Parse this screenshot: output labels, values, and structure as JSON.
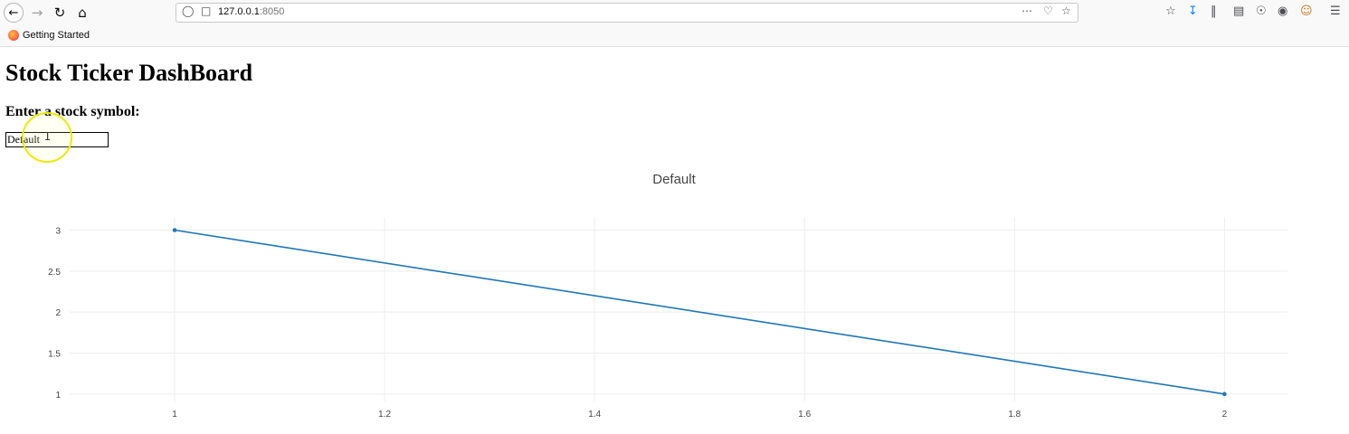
{
  "browser": {
    "url_host": "127.0.0.1",
    "url_port": ":8050",
    "bookmark": "Getting Started"
  },
  "page": {
    "title": "Stock Ticker DashBoard",
    "prompt": "Enter a stock symbol:",
    "input_value": "Default"
  },
  "colors": {
    "line": "#1f77b4",
    "grid": "#eeeeee"
  },
  "chart_data": {
    "type": "line",
    "title": "Default",
    "x": [
      1,
      2
    ],
    "series": [
      {
        "values": [
          3,
          1
        ]
      }
    ],
    "xlim": [
      0.9,
      2.06
    ],
    "ylim": [
      0.91,
      3.16
    ],
    "xticks": [
      1,
      1.2,
      1.4,
      1.6,
      1.8,
      2
    ],
    "xtick_labels": [
      "1",
      "1.2",
      "1.4",
      "1.6",
      "1.8",
      "2"
    ],
    "yticks": [
      1,
      1.5,
      2,
      2.5,
      3
    ],
    "ytick_labels": [
      "1",
      "1.5",
      "2",
      "2.5",
      "3"
    ],
    "xlabel": "",
    "ylabel": "",
    "grid": true
  }
}
